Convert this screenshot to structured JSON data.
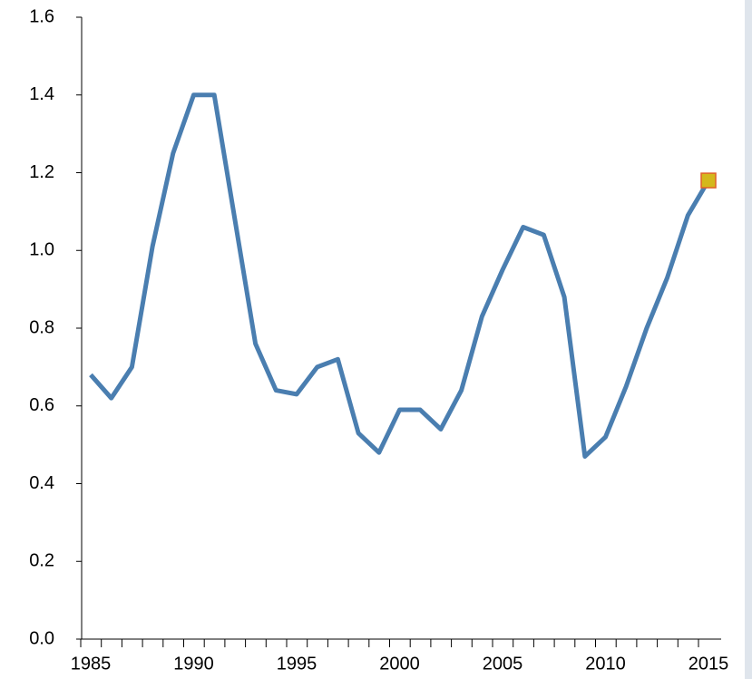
{
  "chart_data": {
    "type": "line",
    "x": [
      1985,
      1986,
      1987,
      1988,
      1989,
      1990,
      1991,
      1992,
      1993,
      1994,
      1995,
      1996,
      1997,
      1998,
      1999,
      2000,
      2001,
      2002,
      2003,
      2004,
      2005,
      2006,
      2007,
      2008,
      2009,
      2010,
      2011,
      2012,
      2013,
      2014,
      2015
    ],
    "values": [
      0.68,
      0.62,
      0.7,
      1.01,
      1.25,
      1.4,
      1.4,
      1.08,
      0.76,
      0.64,
      0.63,
      0.7,
      0.72,
      0.53,
      0.48,
      0.59,
      0.59,
      0.54,
      0.64,
      0.83,
      0.95,
      1.06,
      1.04,
      0.88,
      0.47,
      0.52,
      0.65,
      0.8,
      0.93,
      1.09,
      1.18
    ],
    "color": "#4a7eb0",
    "last_point_marker": {
      "color": "#d4b81c",
      "edgecolor": "#e0602a"
    },
    "xlim": [
      1985,
      2015
    ],
    "xticks": [
      1985,
      1990,
      1995,
      2000,
      2005,
      2010,
      2015
    ],
    "ylim": [
      0,
      1.6
    ],
    "yticks": [
      {
        "value": 0,
        "label": "0.0"
      },
      0.2,
      0.4,
      0.6,
      0.8,
      {
        "value": 1,
        "label": "1.0"
      },
      1.2,
      1.4,
      1.6
    ]
  }
}
